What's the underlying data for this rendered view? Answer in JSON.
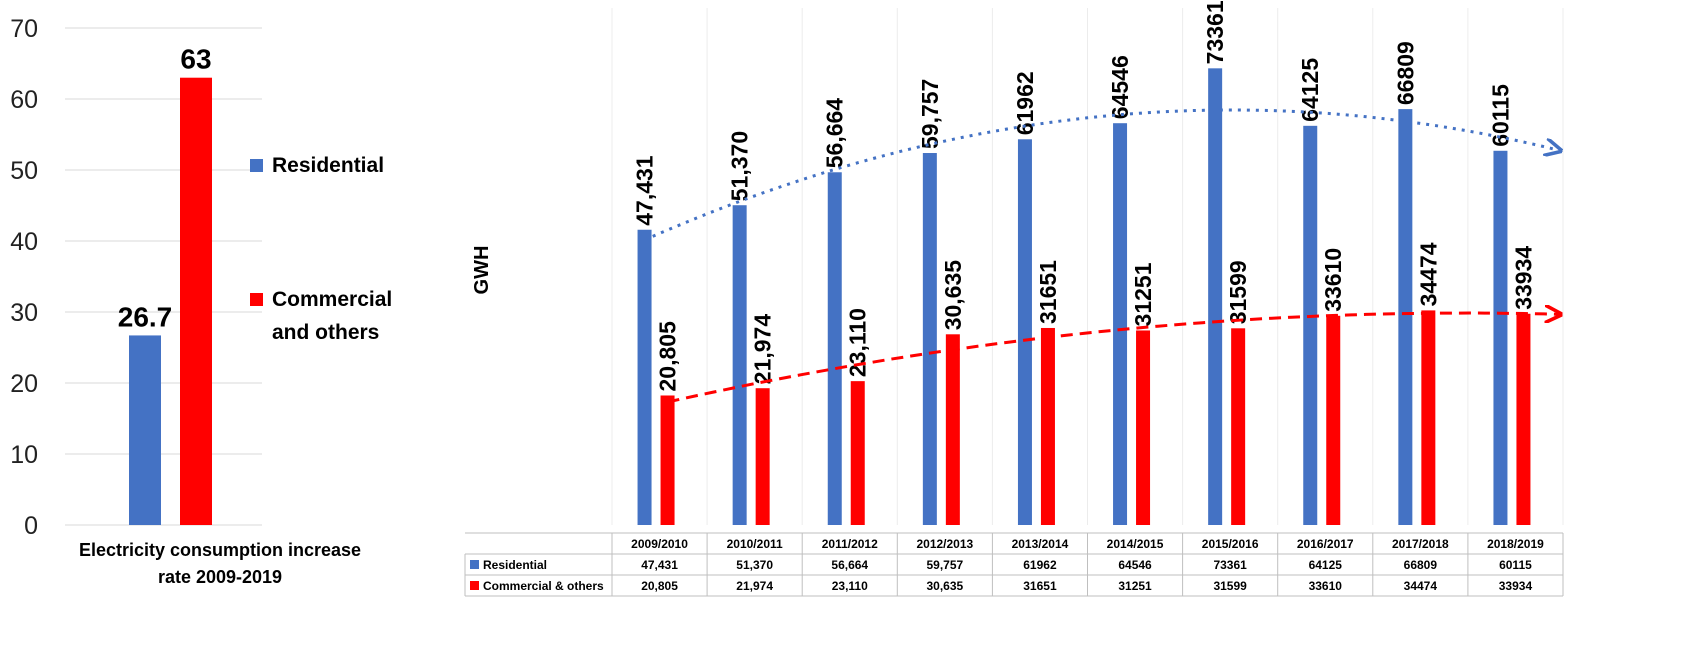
{
  "colors": {
    "residential": "#4472C4",
    "commercial": "#FF0000",
    "grid": "#d9d9d9",
    "text": "#000000"
  },
  "chart_data": [
    {
      "type": "bar",
      "title": "Electricity consumption increase rate 2009-2019",
      "categories": [
        "Residential",
        "Commercial and others"
      ],
      "values": [
        26.7,
        63
      ],
      "value_labels": [
        "26.7",
        "63"
      ],
      "ylim": [
        0,
        70
      ],
      "yticks": [
        0,
        10,
        20,
        30,
        40,
        50,
        60,
        70
      ],
      "grid": true,
      "legend": {
        "position": "right",
        "entries": [
          "Residential",
          "Commercial and others"
        ],
        "entry_lines": [
          [
            "Residential"
          ],
          [
            "Commercial",
            "and others"
          ]
        ]
      }
    },
    {
      "type": "bar",
      "ylabel": "GWH",
      "categories": [
        "2009/2010",
        "2010/2011",
        "2011/2012",
        "2012/2013",
        "2013/2014",
        "2014/2015",
        "2015/2016",
        "2016/2017",
        "2017/2018",
        "2018/2019"
      ],
      "series": [
        {
          "name": "Residential",
          "values": [
            47431,
            51370,
            56664,
            59757,
            61962,
            64546,
            73361,
            64125,
            66809,
            60115
          ],
          "labels": [
            "47,431",
            "51,370",
            "56,664",
            "59,757",
            "61962",
            "64546",
            "73361",
            "64125",
            "66809",
            "60115"
          ],
          "trendline": "dotted"
        },
        {
          "name": "Commercial & others",
          "values": [
            20805,
            21974,
            23110,
            30635,
            31651,
            31251,
            31599,
            33610,
            34474,
            33934
          ],
          "labels": [
            "20,805",
            "21,974",
            "23,110",
            "30,635",
            "31651",
            "31251",
            "31599",
            "33610",
            "34474",
            "33934"
          ],
          "trendline": "dashed"
        }
      ],
      "grid": true,
      "data_table": true
    }
  ]
}
